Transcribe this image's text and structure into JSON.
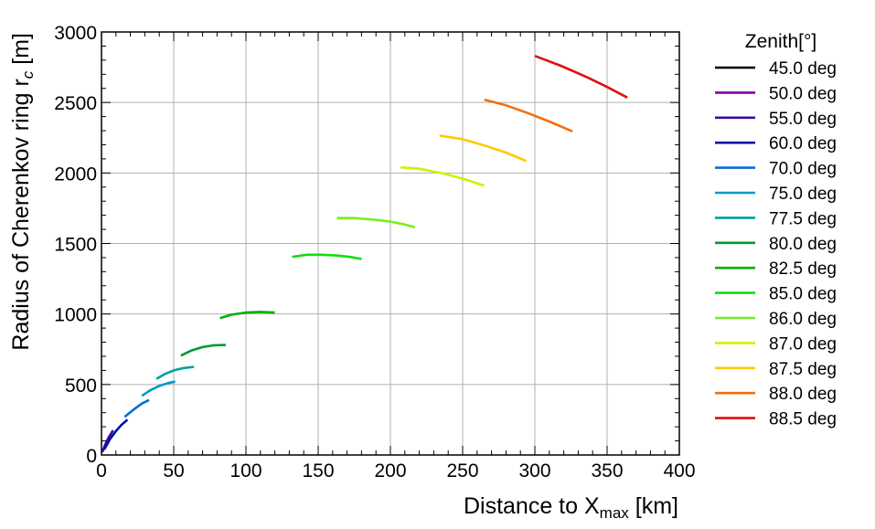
{
  "chart_data": {
    "type": "line",
    "xlabel_main": "Distance to X",
    "xlabel_sub": "max",
    "xlabel_unit": "[km]",
    "ylabel_main": "Radius of Cherenkov ring r",
    "ylabel_sub": "c",
    "ylabel_unit": "[m]",
    "xlim": [
      0,
      400
    ],
    "ylim": [
      0,
      3000
    ],
    "x_ticks": [
      0,
      50,
      100,
      150,
      200,
      250,
      300,
      350,
      400
    ],
    "x_tick_labels": [
      "0",
      "50",
      "100",
      "150",
      "200",
      "250",
      "300",
      "350",
      "400"
    ],
    "y_ticks": [
      0,
      500,
      1000,
      1500,
      2000,
      2500,
      3000
    ],
    "y_tick_labels": [
      "0",
      "500",
      "1000",
      "1500",
      "2000",
      "2500",
      "3000"
    ],
    "grid": true,
    "legend_title": "Zenith[°]",
    "legend_placement": "outside-right",
    "series": [
      {
        "name": "45.0 deg",
        "color": "#000000",
        "x": [
          0.5,
          2,
          3.5,
          5
        ],
        "y": [
          20,
          55,
          85,
          110
        ]
      },
      {
        "name": "50.0 deg",
        "color": "#8000a0",
        "x": [
          0.5,
          2,
          4,
          6
        ],
        "y": [
          20,
          60,
          105,
          140
        ]
      },
      {
        "name": "55.0 deg",
        "color": "#3c0aa0",
        "x": [
          1,
          3,
          5,
          8
        ],
        "y": [
          30,
          80,
          125,
          175
        ]
      },
      {
        "name": "60.0 deg",
        "color": "#0010a8",
        "x": [
          2,
          6,
          10,
          14,
          18
        ],
        "y": [
          40,
          115,
          170,
          215,
          250
        ]
      },
      {
        "name": "70.0 deg",
        "color": "#0070d0",
        "x": [
          16,
          22,
          28,
          33
        ],
        "y": [
          270,
          320,
          365,
          390
        ]
      },
      {
        "name": "75.0 deg",
        "color": "#0099cc",
        "x": [
          28,
          34,
          40,
          46,
          51
        ],
        "y": [
          420,
          460,
          490,
          510,
          520
        ]
      },
      {
        "name": "77.5 deg",
        "color": "#009f9f",
        "x": [
          38,
          44,
          50,
          56,
          64
        ],
        "y": [
          540,
          575,
          600,
          615,
          625
        ]
      },
      {
        "name": "80.0 deg",
        "color": "#009a30",
        "x": [
          55,
          62,
          70,
          78,
          86
        ],
        "y": [
          705,
          740,
          765,
          778,
          780
        ]
      },
      {
        "name": "82.5 deg",
        "color": "#00b000",
        "x": [
          82,
          90,
          100,
          110,
          120
        ],
        "y": [
          970,
          995,
          1010,
          1015,
          1010
        ]
      },
      {
        "name": "85.0 deg",
        "color": "#11dd11",
        "x": [
          132,
          142,
          152,
          162,
          172,
          180
        ],
        "y": [
          1405,
          1420,
          1420,
          1415,
          1405,
          1390
        ]
      },
      {
        "name": "86.0 deg",
        "color": "#77ee22",
        "x": [
          163,
          175,
          188,
          200,
          210,
          217
        ],
        "y": [
          1680,
          1680,
          1670,
          1655,
          1635,
          1615
        ]
      },
      {
        "name": "87.0 deg",
        "color": "#d4ee00",
        "x": [
          207,
          220,
          235,
          250,
          265
        ],
        "y": [
          2040,
          2030,
          2000,
          1960,
          1910
        ]
      },
      {
        "name": "87.5 deg",
        "color": "#ffc800",
        "x": [
          234,
          250,
          265,
          280,
          294
        ],
        "y": [
          2265,
          2240,
          2195,
          2145,
          2085
        ]
      },
      {
        "name": "88.0 deg",
        "color": "#f07010",
        "x": [
          265,
          280,
          295,
          310,
          326
        ],
        "y": [
          2520,
          2480,
          2425,
          2365,
          2295
        ]
      },
      {
        "name": "88.5 deg",
        "color": "#dd1111",
        "x": [
          300,
          318,
          336,
          350,
          364
        ],
        "y": [
          2830,
          2760,
          2680,
          2610,
          2535
        ]
      }
    ]
  }
}
